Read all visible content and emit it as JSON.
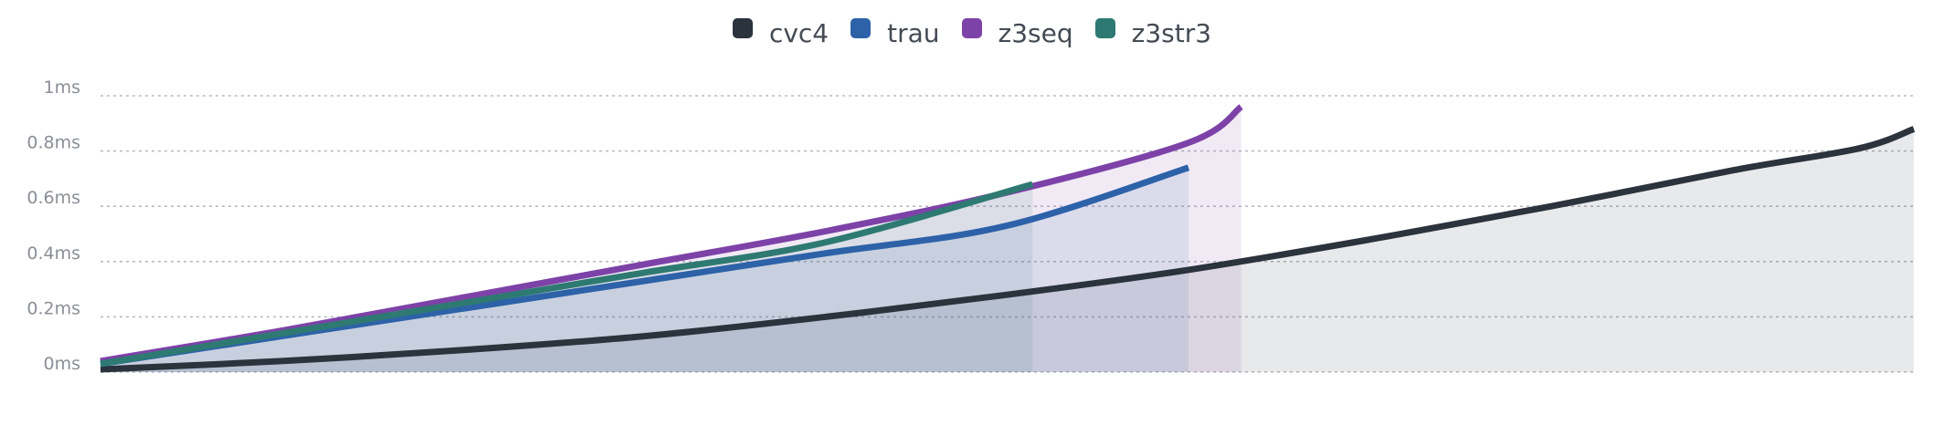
{
  "chart_data": {
    "type": "area",
    "title": "",
    "xlabel": "",
    "ylabel": "",
    "ylim": [
      0,
      1
    ],
    "y_ticks": [
      {
        "value": 0,
        "label": "0ms"
      },
      {
        "value": 0.2,
        "label": "0.2ms"
      },
      {
        "value": 0.4,
        "label": "0.4ms"
      },
      {
        "value": 0.6,
        "label": "0.6ms"
      },
      {
        "value": 0.8,
        "label": "0.8ms"
      },
      {
        "value": 1,
        "label": "1ms"
      }
    ],
    "x_axis_labels": "none",
    "grid": true,
    "legend_position": "top-center",
    "series": [
      {
        "name": "cvc4",
        "color": "#2b333d",
        "points": [
          [
            0,
            0.01
          ],
          [
            0.1,
            0.04
          ],
          [
            0.2,
            0.08
          ],
          [
            0.3,
            0.13
          ],
          [
            0.4,
            0.2
          ],
          [
            0.5,
            0.28
          ],
          [
            0.6,
            0.37
          ],
          [
            0.7,
            0.48
          ],
          [
            0.8,
            0.6
          ],
          [
            0.9,
            0.73
          ],
          [
            0.97,
            0.81
          ],
          [
            1,
            0.88
          ]
        ]
      },
      {
        "name": "trau",
        "color": "#2d62a8",
        "points": [
          [
            0,
            0.03
          ],
          [
            0.1,
            0.13
          ],
          [
            0.2,
            0.23
          ],
          [
            0.3,
            0.33
          ],
          [
            0.4,
            0.43
          ],
          [
            0.5,
            0.53
          ],
          [
            0.6,
            0.74
          ]
        ]
      },
      {
        "name": "z3seq",
        "color": "#7d42a7",
        "points": [
          [
            0,
            0.04
          ],
          [
            0.1,
            0.15
          ],
          [
            0.2,
            0.27
          ],
          [
            0.3,
            0.39
          ],
          [
            0.4,
            0.51
          ],
          [
            0.5,
            0.65
          ],
          [
            0.6,
            0.83
          ],
          [
            0.629,
            0.96
          ]
        ]
      },
      {
        "name": "z3str3",
        "color": "#2e7a72",
        "points": [
          [
            0,
            0.03
          ],
          [
            0.1,
            0.14
          ],
          [
            0.2,
            0.25
          ],
          [
            0.3,
            0.36
          ],
          [
            0.4,
            0.47
          ],
          [
            0.514,
            0.68
          ]
        ]
      }
    ]
  }
}
